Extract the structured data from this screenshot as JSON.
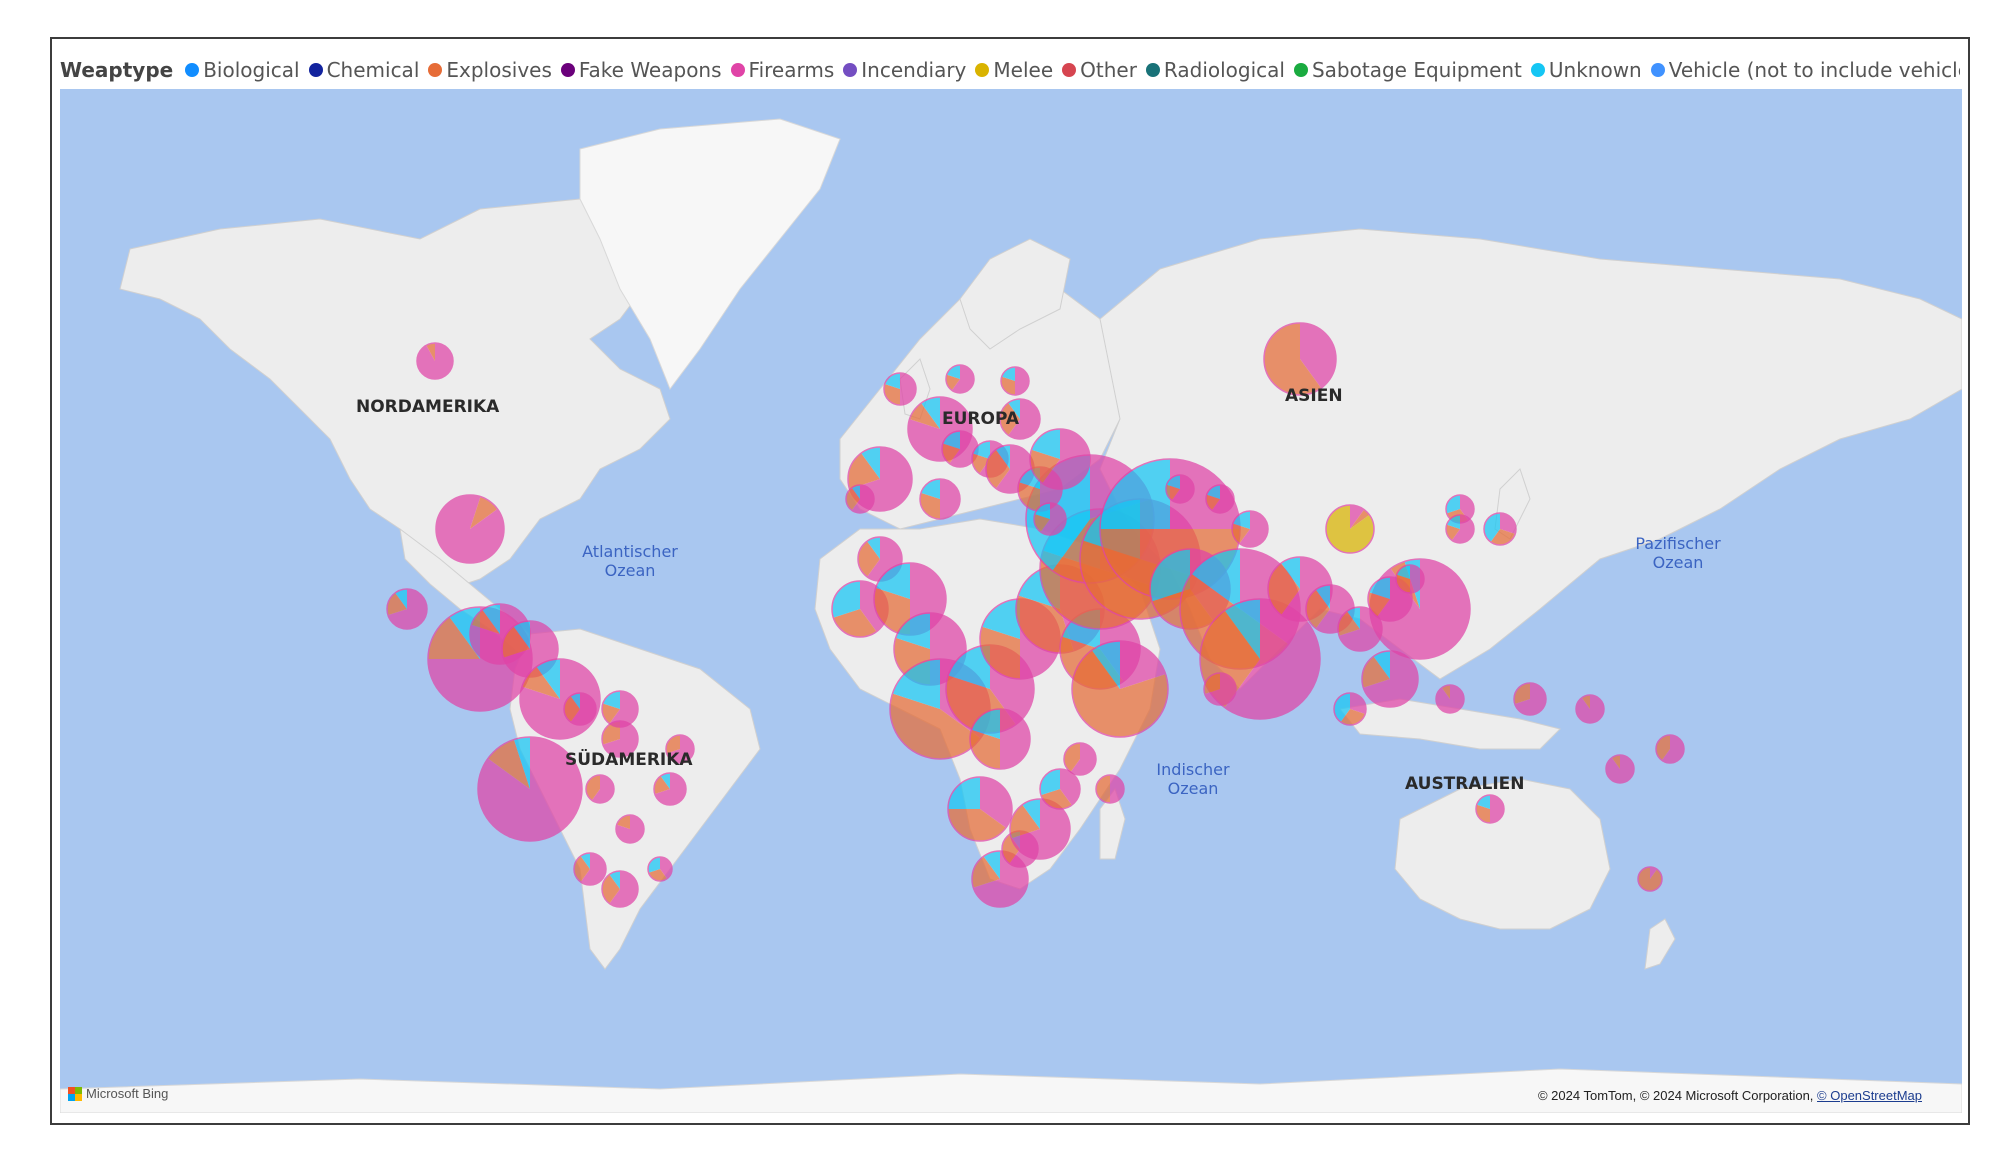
{
  "legend": {
    "title": "Weaptype",
    "items": [
      {
        "label": "Biological",
        "color": "#118dff"
      },
      {
        "label": "Chemical",
        "color": "#12239e"
      },
      {
        "label": "Explosives",
        "color": "#e66c37"
      },
      {
        "label": "Fake Weapons",
        "color": "#6b007b"
      },
      {
        "label": "Firearms",
        "color": "#e044a7"
      },
      {
        "label": "Incendiary",
        "color": "#744ec2"
      },
      {
        "label": "Melee",
        "color": "#d9b300"
      },
      {
        "label": "Other",
        "color": "#d64550"
      },
      {
        "label": "Radiological",
        "color": "#197278"
      },
      {
        "label": "Sabotage Equipment",
        "color": "#1aab40"
      },
      {
        "label": "Unknown",
        "color": "#15c6f4"
      },
      {
        "label": "Vehicle (not to include vehicle-borne explosives...",
        "color": "#4092ff"
      }
    ]
  },
  "map": {
    "regions": [
      "NORDAMERIKA",
      "SÜDAMERIKA",
      "EUROPA",
      "ASIEN",
      "AUSTRALIEN"
    ],
    "oceans": {
      "atlantic": [
        "Atlantischer",
        "Ozean"
      ],
      "indian": [
        "Indischer",
        "Ozean"
      ],
      "pacific": [
        "Pazifischer",
        "Ozean"
      ]
    },
    "provider": "Microsoft Bing",
    "copyright_text": "© 2024 TomTom, © 2024 Microsoft Corporation, ",
    "copyright_link": "© OpenStreetMap"
  },
  "colors": {
    "ocean": "#a9c7f0",
    "land": "#ededed",
    "ice": "#f7f7f7"
  }
}
